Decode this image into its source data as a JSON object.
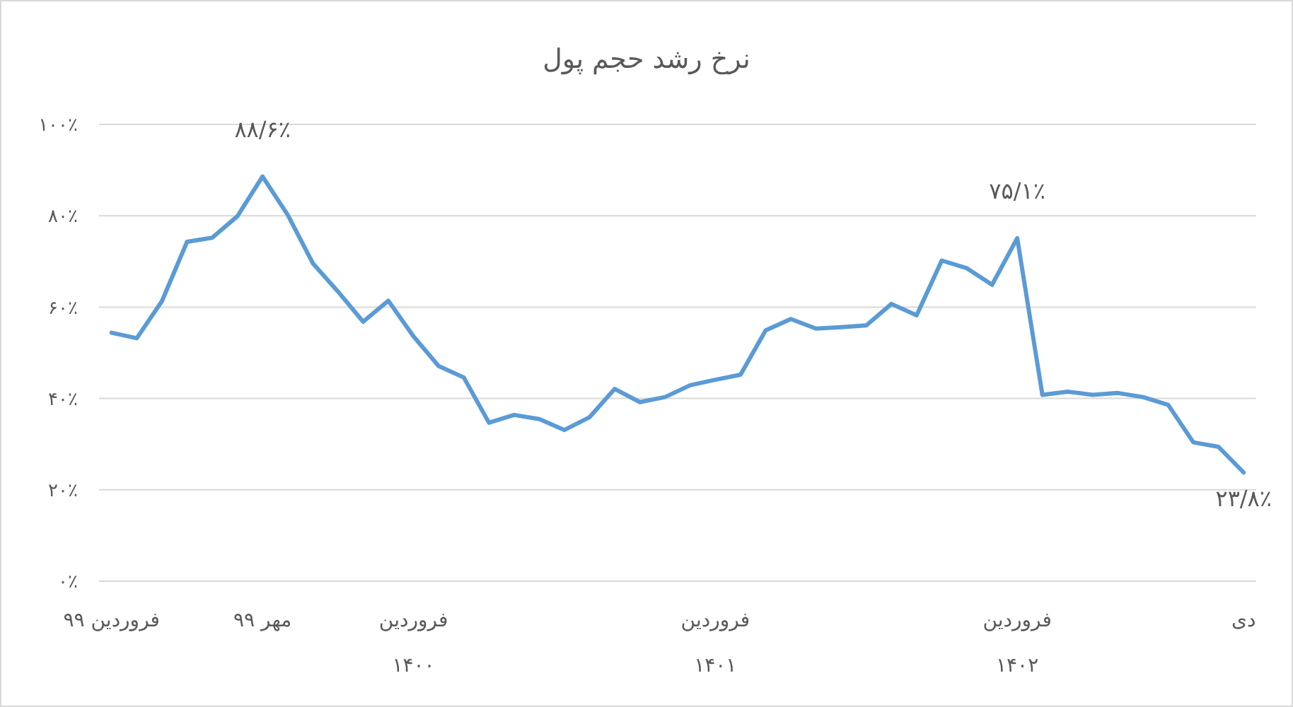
{
  "chart_data": {
    "type": "line",
    "title": "نرخ رشد حجم پول",
    "categories": [
      "فروردین ۹۹",
      null,
      null,
      null,
      null,
      null,
      "مهر ۹۹",
      null,
      null,
      null,
      null,
      null,
      "فروردین ۱۴۰۰",
      null,
      null,
      null,
      null,
      null,
      null,
      null,
      null,
      null,
      null,
      null,
      "فروردین ۱۴۰۱",
      null,
      null,
      null,
      null,
      null,
      null,
      null,
      null,
      null,
      null,
      null,
      "فروردین ۱۴۰۲",
      null,
      null,
      null,
      null,
      null,
      null,
      null,
      null,
      "دی"
    ],
    "series": [
      {
        "color": "#5b9bd5",
        "values": [
          54.4,
          53.2,
          61.3,
          74.3,
          75.2,
          79.9,
          88.6,
          80.2,
          69.6,
          63.4,
          56.8,
          61.4,
          53.6,
          47.1,
          44.6,
          34.7,
          36.4,
          35.5,
          33.1,
          35.9,
          42.1,
          39.2,
          40.3,
          42.9,
          44.1,
          45.2,
          54.9,
          57.4,
          55.3,
          55.6,
          56.0,
          60.7,
          58.2,
          70.2,
          68.5,
          64.9,
          75.1,
          40.8,
          41.5,
          40.8,
          41.2,
          40.3,
          38.6,
          30.4,
          29.4,
          23.8
        ],
        "value_labels": [
          null,
          null,
          null,
          null,
          null,
          null,
          "۸۸/۶٪",
          null,
          null,
          null,
          null,
          null,
          null,
          null,
          null,
          null,
          null,
          null,
          null,
          null,
          null,
          null,
          null,
          null,
          null,
          null,
          null,
          null,
          null,
          null,
          null,
          null,
          null,
          null,
          null,
          null,
          "۷۵/۱٪",
          null,
          null,
          null,
          null,
          null,
          null,
          null,
          null,
          "۲۳/۸٪"
        ]
      }
    ],
    "ylim": [
      0,
      100
    ],
    "yticks": [
      {
        "value": 0,
        "label": "۰٪"
      },
      {
        "value": 20,
        "label": "۲۰٪"
      },
      {
        "value": 40,
        "label": "۴۰٪"
      },
      {
        "value": 60,
        "label": "۶۰٪"
      },
      {
        "value": 80,
        "label": "۸۰٪"
      },
      {
        "value": 100,
        "label": "۱۰۰٪"
      }
    ],
    "grid": "y"
  }
}
